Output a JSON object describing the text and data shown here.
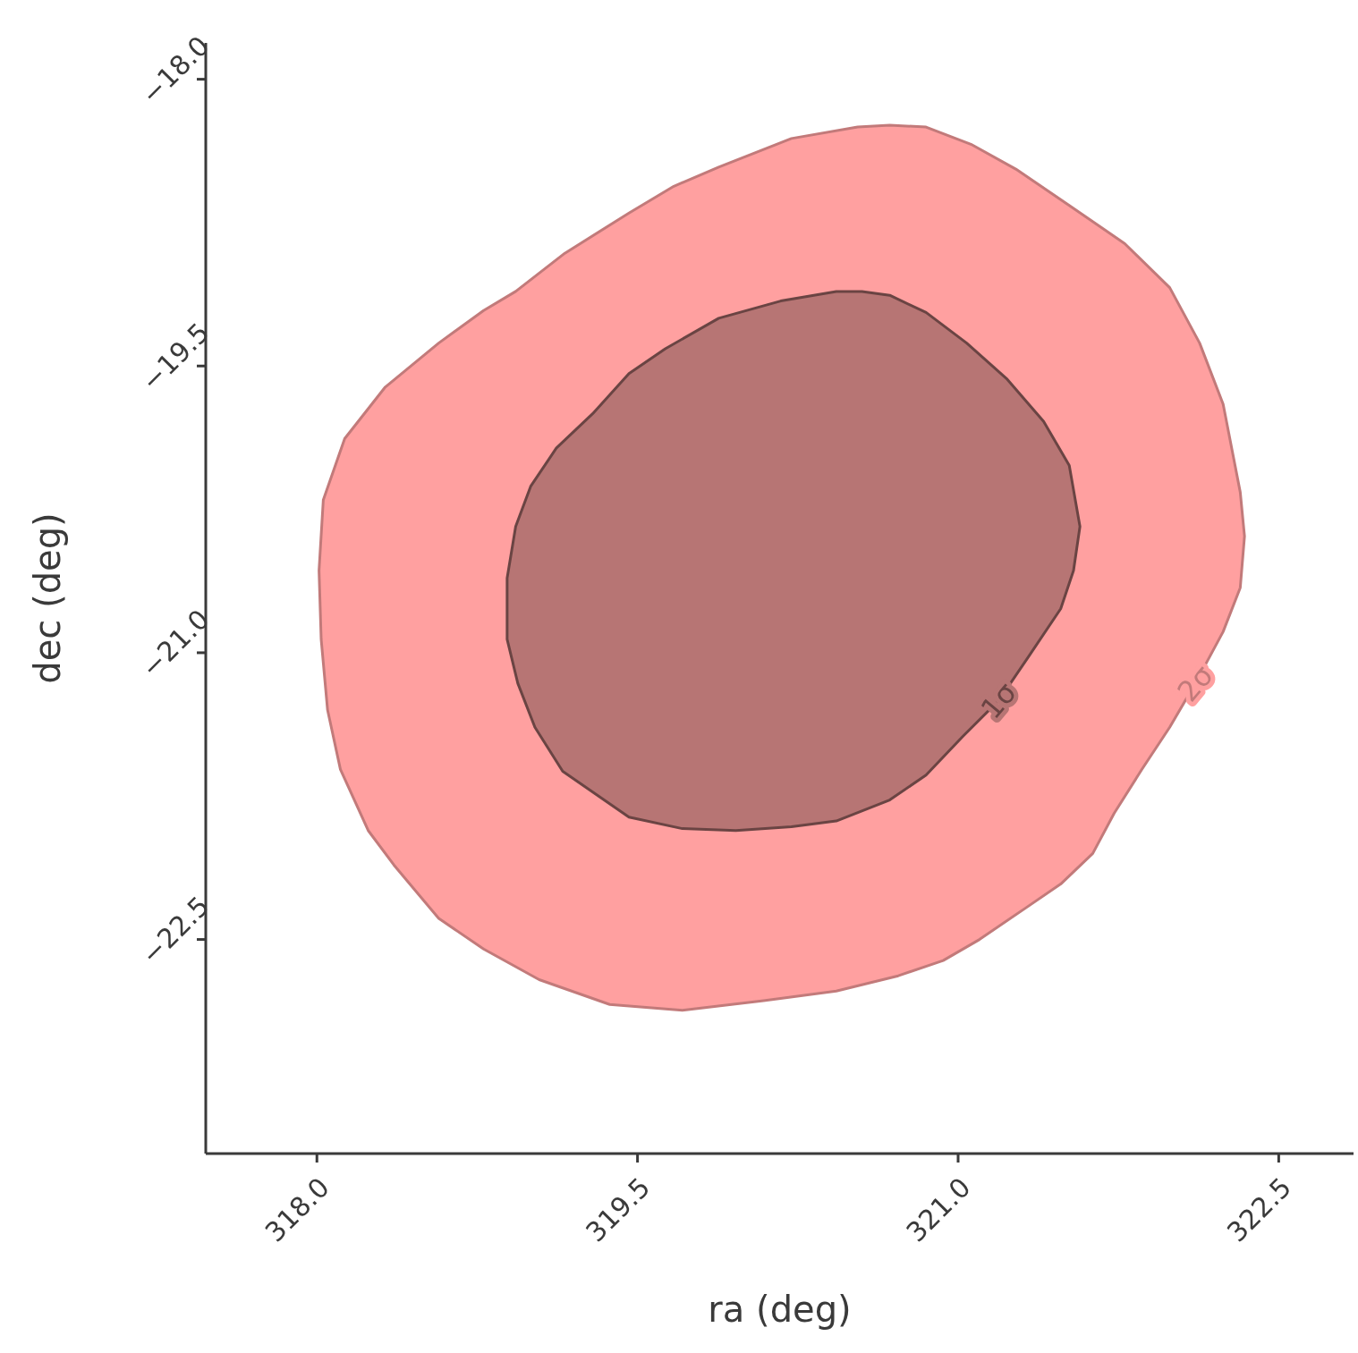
{
  "chart_data": {
    "type": "area",
    "xlabel": "ra (deg)",
    "ylabel": "dec (deg)",
    "xlim": [
      317.48,
      322.85
    ],
    "ylim": [
      -23.62,
      -17.81
    ],
    "xticks": [
      {
        "value": 318,
        "label": "318.0"
      },
      {
        "value": 319.5,
        "label": "319.5"
      },
      {
        "value": 321,
        "label": "321.0"
      },
      {
        "value": 322.5,
        "label": "322.5"
      }
    ],
    "yticks": [
      {
        "value": -18,
        "label": "−18.0"
      },
      {
        "value": -19.5,
        "label": "−19.5"
      },
      {
        "value": -21,
        "label": "−21.0"
      },
      {
        "value": -22.5,
        "label": "−22.5"
      }
    ],
    "grid": false,
    "series": [
      {
        "color": "#ffa0a0",
        "x": [
          320.53,
          320.22,
          319.88,
          319.67,
          319.46,
          319.16,
          318.93,
          318.78,
          318.57,
          318.32,
          318.13,
          318.03,
          318.01,
          318.02,
          318.05,
          318.11,
          318.24,
          318.36,
          318.57,
          318.78,
          319.04,
          319.37,
          319.71,
          320.09,
          320.43,
          320.72,
          320.93,
          321.1,
          321.31,
          321.48,
          321.63,
          321.73,
          321.86,
          321.99,
          322.11,
          322.24,
          322.32,
          322.34,
          322.32,
          322.24,
          322.13,
          321.99,
          321.78,
          321.52,
          321.27,
          321.06,
          320.85,
          320.68
        ],
        "values": [
          -18.25,
          -18.31,
          -18.46,
          -18.56,
          -18.7,
          -18.91,
          -19.11,
          -19.21,
          -19.38,
          -19.61,
          -19.88,
          -20.2,
          -20.57,
          -20.93,
          -21.3,
          -21.61,
          -21.93,
          -22.11,
          -22.39,
          -22.55,
          -22.71,
          -22.84,
          -22.87,
          -22.82,
          -22.77,
          -22.69,
          -22.61,
          -22.5,
          -22.34,
          -22.21,
          -22.05,
          -21.84,
          -21.61,
          -21.39,
          -21.16,
          -20.89,
          -20.66,
          -20.39,
          -20.16,
          -19.7,
          -19.38,
          -19.09,
          -18.86,
          -18.66,
          -18.47,
          -18.34,
          -18.25,
          -18.24
        ]
      },
      {
        "color": "#b77574",
        "x": [
          320.43,
          320.17,
          319.88,
          319.63,
          319.46,
          319.29,
          319.12,
          319.0,
          318.93,
          318.89,
          318.89,
          318.94,
          319.02,
          319.15,
          319.46,
          319.71,
          319.96,
          320.22,
          320.43,
          320.68,
          320.85,
          321.02,
          321.19,
          321.33,
          321.48,
          321.54,
          321.57,
          321.52,
          321.4,
          321.23,
          321.04,
          320.85,
          320.68,
          320.55
        ],
        "values": [
          -19.11,
          -19.16,
          -19.25,
          -19.41,
          -19.54,
          -19.75,
          -19.93,
          -20.13,
          -20.34,
          -20.61,
          -20.93,
          -21.16,
          -21.39,
          -21.62,
          -21.86,
          -21.92,
          -21.93,
          -21.91,
          -21.88,
          -21.77,
          -21.64,
          -21.44,
          -21.25,
          -21.02,
          -20.77,
          -20.57,
          -20.34,
          -20.02,
          -19.79,
          -19.57,
          -19.38,
          -19.22,
          -19.13,
          -19.11
        ]
      }
    ],
    "annotations": [
      {
        "text": "2σ",
        "x": 322.11,
        "y": -21.16
      },
      {
        "text": "1σ",
        "x": 321.19,
        "y": -21.25
      }
    ]
  }
}
